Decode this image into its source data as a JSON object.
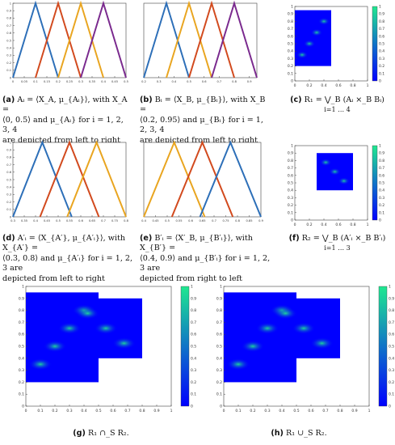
{
  "figure": {
    "colors": {
      "blue": "#2d6fb8",
      "red": "#d24a1e",
      "yellow": "#e9a520",
      "purple": "#7a2a8e",
      "heat_low": "#0000ff",
      "heat_high": "#20e890"
    },
    "panels": [
      {
        "label": "(a)",
        "caption_lines": [
          "Aᵢ = ⟨X_A, μ_{Aᵢ}⟩, with X_A =",
          "⟨0, 0.5⟩ and μ_{Aᵢ} for i = 1, 2, 3, 4",
          "are depicted from left to right"
        ]
      },
      {
        "label": "(b)",
        "caption_lines": [
          "Bᵢ = ⟨X_B, μ_{Bᵢ}⟩, with X_B =",
          "⟨0.2, 0.95⟩ and μ_{Bᵢ} for i = 1, 2, 3, 4",
          "are depicted from left to right"
        ]
      },
      {
        "label": "(c)",
        "caption_lines": [
          "R₁ = ⋁_B (Aᵢ ×_B Bᵢ)",
          "i=1 … 4"
        ]
      },
      {
        "label": "(d)",
        "caption_lines": [
          "A′ᵢ = ⟨X_{A′}, μ_{A′ᵢ}⟩, with X_{A′} =",
          "⟨0.3, 0.8⟩ and μ_{A′ᵢ} for i = 1, 2, 3 are",
          "depicted from left to right"
        ]
      },
      {
        "label": "(e)",
        "caption_lines": [
          "B′ᵢ = ⟨X′_B, μ_{B′ᵢ}⟩, with X_{B′} =",
          "⟨0.4, 0.9⟩ and μ_{B′ᵢ} for i = 1, 2, 3 are",
          "depicted from right to left"
        ]
      },
      {
        "label": "(f)",
        "caption_lines": [
          "R₂ = ⋁_B (A′ᵢ ×_B B′ᵢ)",
          "i=1 … 3"
        ]
      },
      {
        "label": "(g)",
        "caption_lines": [
          "R₁ ∩_S R₂."
        ]
      },
      {
        "label": "(h)",
        "caption_lines": [
          "R₁ ∪_S R₂."
        ]
      }
    ]
  },
  "chart_data": [
    {
      "type": "line",
      "id": "a",
      "xlim": [
        0,
        0.5
      ],
      "ylim": [
        0,
        1
      ],
      "x_ticks": [
        "0",
        "0.05",
        "0.1",
        "0.15",
        "0.2",
        "0.25",
        "0.3",
        "0.35",
        "0.4",
        "0.45",
        "0.5"
      ],
      "y_ticks": [
        "0",
        "0.1",
        "0.2",
        "0.3",
        "0.4",
        "0.5",
        "0.6",
        "0.7",
        "0.8",
        "0.9",
        "1"
      ],
      "series": [
        {
          "color": "#2d6fb8",
          "x": [
            0,
            0.1,
            0.2
          ],
          "y": [
            0,
            1,
            0
          ]
        },
        {
          "color": "#d24a1e",
          "x": [
            0.1,
            0.2,
            0.3
          ],
          "y": [
            0,
            1,
            0
          ]
        },
        {
          "color": "#e9a520",
          "x": [
            0.2,
            0.3,
            0.4
          ],
          "y": [
            0,
            1,
            0
          ]
        },
        {
          "color": "#7a2a8e",
          "x": [
            0.3,
            0.4,
            0.5
          ],
          "y": [
            0,
            1,
            0
          ]
        }
      ]
    },
    {
      "type": "line",
      "id": "b",
      "xlim": [
        0.2,
        0.95
      ],
      "ylim": [
        0,
        1
      ],
      "x_ticks": [
        "0.2",
        "0.3",
        "0.4",
        "0.5",
        "0.6",
        "0.7",
        "0.8",
        "0.9"
      ],
      "y_ticks": [],
      "series": [
        {
          "color": "#2d6fb8",
          "x": [
            0.2,
            0.35,
            0.5
          ],
          "y": [
            0,
            1,
            0
          ]
        },
        {
          "color": "#e9a520",
          "x": [
            0.35,
            0.5,
            0.65
          ],
          "y": [
            0,
            1,
            0
          ]
        },
        {
          "color": "#d24a1e",
          "x": [
            0.5,
            0.65,
            0.8
          ],
          "y": [
            0,
            1,
            0
          ]
        },
        {
          "color": "#7a2a8e",
          "x": [
            0.65,
            0.8,
            0.95
          ],
          "y": [
            0,
            1,
            0
          ]
        }
      ]
    },
    {
      "type": "heatmap",
      "id": "c",
      "xlim": [
        0,
        1
      ],
      "ylim": [
        0,
        1
      ],
      "x_ticks": [
        "0",
        "0.2",
        "0.4",
        "0.6",
        "0.8",
        "1"
      ],
      "y_ticks": [
        "0",
        "0.1",
        "0.2",
        "0.3",
        "0.4",
        "0.5",
        "0.6",
        "0.7",
        "0.8",
        "0.9",
        "1"
      ],
      "colorbar_ticks": [
        "0",
        "0.1",
        "0.2",
        "0.3",
        "0.4",
        "0.5",
        "0.6",
        "0.7",
        "0.8",
        "0.9",
        "1"
      ],
      "regions": [
        {
          "x": [
            0,
            0.5
          ],
          "y": [
            0.2,
            0.95
          ]
        }
      ],
      "diagonal": "up"
    },
    {
      "type": "line",
      "id": "d",
      "xlim": [
        0.3,
        0.8
      ],
      "ylim": [
        0,
        1
      ],
      "x_ticks": [
        "0.3",
        "0.35",
        "0.4",
        "0.45",
        "0.5",
        "0.55",
        "0.6",
        "0.65",
        "0.7",
        "0.75",
        "0.8"
      ],
      "y_ticks": [
        "0",
        "0.1",
        "0.2",
        "0.3",
        "0.4",
        "0.5",
        "0.6",
        "0.7",
        "0.8",
        "0.9",
        "1"
      ],
      "series": [
        {
          "color": "#2d6fb8",
          "x": [
            0.3,
            0.43,
            0.56
          ],
          "y": [
            0,
            1,
            0
          ]
        },
        {
          "color": "#d24a1e",
          "x": [
            0.42,
            0.55,
            0.68
          ],
          "y": [
            0,
            1,
            0
          ]
        },
        {
          "color": "#e9a520",
          "x": [
            0.54,
            0.67,
            0.8
          ],
          "y": [
            0,
            1,
            0
          ]
        }
      ]
    },
    {
      "type": "line",
      "id": "e",
      "xlim": [
        0.4,
        0.9
      ],
      "ylim": [
        0,
        1
      ],
      "x_ticks": [
        "0.4",
        "0.45",
        "0.5",
        "0.55",
        "0.6",
        "0.65",
        "0.7",
        "0.75",
        "0.8",
        "0.85",
        "0.9"
      ],
      "y_ticks": [],
      "series": [
        {
          "color": "#e9a520",
          "x": [
            0.4,
            0.53,
            0.66
          ],
          "y": [
            0,
            1,
            0
          ]
        },
        {
          "color": "#d24a1e",
          "x": [
            0.52,
            0.65,
            0.78
          ],
          "y": [
            0,
            1,
            0
          ]
        },
        {
          "color": "#2d6fb8",
          "x": [
            0.64,
            0.77,
            0.9
          ],
          "y": [
            0,
            1,
            0
          ]
        }
      ]
    },
    {
      "type": "heatmap",
      "id": "f",
      "xlim": [
        0,
        1
      ],
      "ylim": [
        0,
        1
      ],
      "x_ticks": [
        "0",
        "0.2",
        "0.4",
        "0.6",
        "0.8",
        "1"
      ],
      "y_ticks": [
        "0",
        "0.1",
        "0.2",
        "0.3",
        "0.4",
        "0.5",
        "0.6",
        "0.7",
        "0.8",
        "0.9",
        "1"
      ],
      "colorbar_ticks": [
        "0",
        "0.1",
        "0.2",
        "0.3",
        "0.4",
        "0.5",
        "0.6",
        "0.7",
        "0.8",
        "0.9",
        "1"
      ],
      "regions": [
        {
          "x": [
            0.3,
            0.8
          ],
          "y": [
            0.4,
            0.9
          ]
        }
      ],
      "diagonal": "down"
    },
    {
      "type": "heatmap",
      "id": "g",
      "xlim": [
        0,
        1
      ],
      "ylim": [
        0,
        1
      ],
      "x_ticks": [
        "0",
        "0.1",
        "0.2",
        "0.3",
        "0.4",
        "0.5",
        "0.6",
        "0.7",
        "0.8",
        "0.9",
        "1"
      ],
      "y_ticks": [
        "0",
        "0.1",
        "0.2",
        "0.3",
        "0.4",
        "0.5",
        "0.6",
        "0.7",
        "0.8",
        "0.9",
        "1"
      ],
      "colorbar_ticks": [
        "0",
        "0.1",
        "0.2",
        "0.3",
        "0.4",
        "0.5",
        "0.6",
        "0.7",
        "0.8",
        "0.9",
        "1"
      ],
      "regions": [
        {
          "x": [
            0,
            0.5
          ],
          "y": [
            0.2,
            0.95
          ]
        },
        {
          "x": [
            0.3,
            0.8
          ],
          "y": [
            0.4,
            0.9
          ]
        }
      ],
      "diagonal": "both"
    },
    {
      "type": "heatmap",
      "id": "h",
      "xlim": [
        0,
        1
      ],
      "ylim": [
        0,
        1
      ],
      "x_ticks": [
        "0",
        "0.1",
        "0.2",
        "0.3",
        "0.4",
        "0.5",
        "0.6",
        "0.7",
        "0.8",
        "0.9",
        "1"
      ],
      "y_ticks": [
        "0",
        "0.1",
        "0.2",
        "0.3",
        "0.4",
        "0.5",
        "0.6",
        "0.7",
        "0.8",
        "0.9",
        "1"
      ],
      "colorbar_ticks": [
        "0",
        "0.1",
        "0.2",
        "0.3",
        "0.4",
        "0.5",
        "0.6",
        "0.7",
        "0.8",
        "0.9",
        "1"
      ],
      "regions": [
        {
          "x": [
            0,
            0.5
          ],
          "y": [
            0.2,
            0.95
          ]
        },
        {
          "x": [
            0.3,
            0.8
          ],
          "y": [
            0.4,
            0.9
          ]
        }
      ],
      "diagonal": "both"
    }
  ]
}
